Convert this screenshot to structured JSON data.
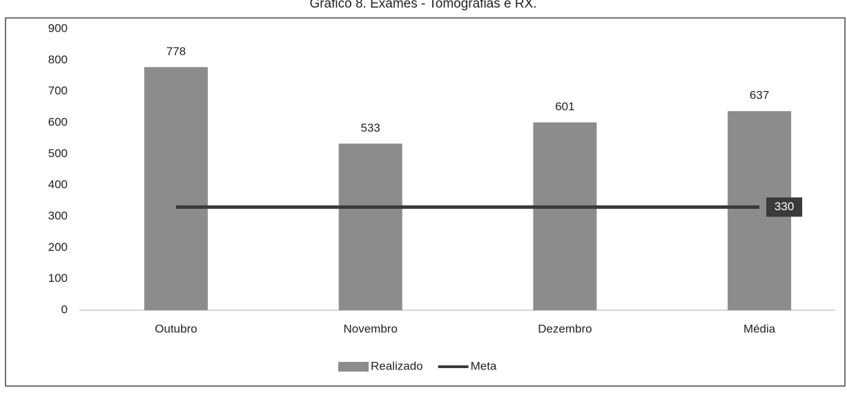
{
  "chart_data": {
    "type": "bar",
    "title": "Gráfico 8. Exames - Tomografias e RX.",
    "categories": [
      "Outubro",
      "Novembro",
      "Dezembro",
      "Média"
    ],
    "series": [
      {
        "name": "Realizado",
        "type": "bar",
        "color": "#8c8c8c",
        "values": [
          778,
          533,
          601,
          637
        ]
      },
      {
        "name": "Meta",
        "type": "line",
        "color": "#3a3a3a",
        "values": [
          330,
          330,
          330,
          330
        ]
      }
    ],
    "ylim": [
      0,
      900
    ],
    "yticks": [
      0,
      100,
      200,
      300,
      400,
      500,
      600,
      700,
      800,
      900
    ],
    "grid": false,
    "legend": "bottom"
  }
}
